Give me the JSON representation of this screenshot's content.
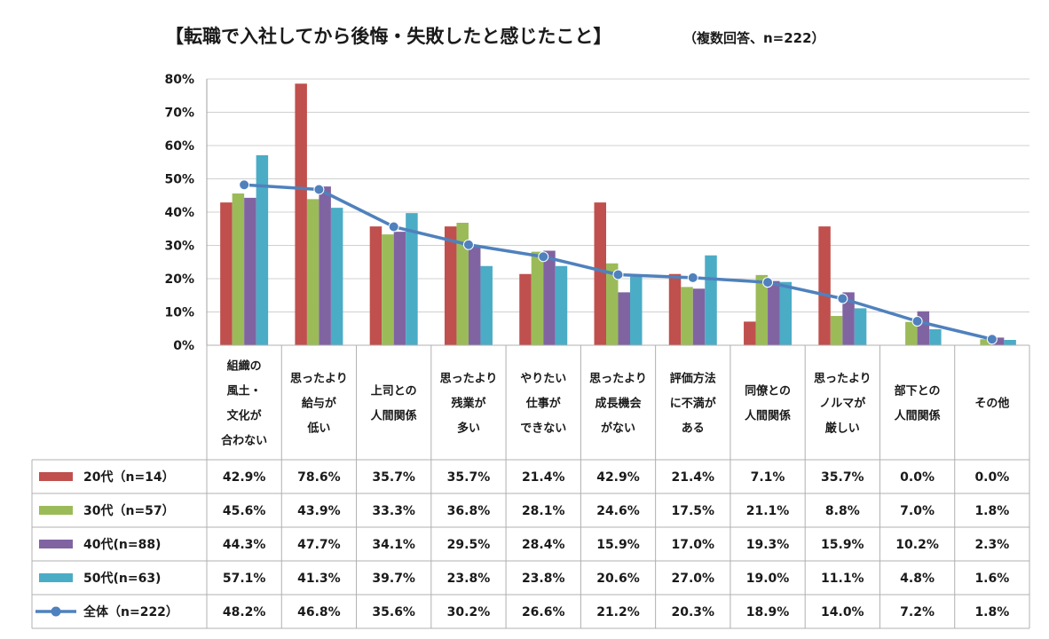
{
  "chart_data": {
    "type": "bar",
    "title": "【転職で入社してから後悔・失敗したと感じたこと】",
    "subtitle": "（複数回答、n=222）",
    "ylim": [
      0,
      80
    ],
    "yticks": [
      "0%",
      "10%",
      "20%",
      "30%",
      "40%",
      "50%",
      "60%",
      "70%",
      "80%"
    ],
    "grid": true,
    "legend": "table-left",
    "categories": [
      [
        "組織の",
        "風土・",
        "文化が",
        "合わない"
      ],
      [
        "思ったより",
        "給与が",
        "低い"
      ],
      [
        "上司との",
        "人間関係"
      ],
      [
        "思ったより",
        "残業が",
        "多い"
      ],
      [
        "やりたい",
        "仕事が",
        "できない"
      ],
      [
        "思ったより",
        "成長機会",
        "がない"
      ],
      [
        "評価方法",
        "に不満が",
        "ある"
      ],
      [
        "同僚との",
        "人間関係"
      ],
      [
        "思ったより",
        "ノルマが",
        "厳しい"
      ],
      [
        "部下との",
        "人間関係"
      ],
      [
        "その他"
      ]
    ],
    "series": [
      {
        "name": "20代（n=14）",
        "kind": "bar",
        "color": "#c0504d",
        "values": [
          42.9,
          78.6,
          35.7,
          35.7,
          21.4,
          42.9,
          21.4,
          7.1,
          35.7,
          0.0,
          0.0
        ],
        "labels": [
          "42.9%",
          "78.6%",
          "35.7%",
          "35.7%",
          "21.4%",
          "42.9%",
          "21.4%",
          "7.1%",
          "35.7%",
          "0.0%",
          "0.0%"
        ]
      },
      {
        "name": "30代（n=57）",
        "kind": "bar",
        "color": "#9bbb59",
        "values": [
          45.6,
          43.9,
          33.3,
          36.8,
          28.1,
          24.6,
          17.5,
          21.1,
          8.8,
          7.0,
          1.8
        ],
        "labels": [
          "45.6%",
          "43.9%",
          "33.3%",
          "36.8%",
          "28.1%",
          "24.6%",
          "17.5%",
          "21.1%",
          "8.8%",
          "7.0%",
          "1.8%"
        ]
      },
      {
        "name": "40代(n=88)",
        "kind": "bar",
        "color": "#8064a2",
        "values": [
          44.3,
          47.7,
          34.1,
          29.5,
          28.4,
          15.9,
          17.0,
          19.3,
          15.9,
          10.2,
          2.3
        ],
        "labels": [
          "44.3%",
          "47.7%",
          "34.1%",
          "29.5%",
          "28.4%",
          "15.9%",
          "17.0%",
          "19.3%",
          "15.9%",
          "10.2%",
          "2.3%"
        ]
      },
      {
        "name": "50代(n=63)",
        "kind": "bar",
        "color": "#4bacc6",
        "values": [
          57.1,
          41.3,
          39.7,
          23.8,
          23.8,
          20.6,
          27.0,
          19.0,
          11.1,
          4.8,
          1.6
        ],
        "labels": [
          "57.1%",
          "41.3%",
          "39.7%",
          "23.8%",
          "23.8%",
          "20.6%",
          "27.0%",
          "19.0%",
          "11.1%",
          "4.8%",
          "1.6%"
        ]
      },
      {
        "name": "全体（n=222）",
        "kind": "line",
        "color": "#4f81bd",
        "values": [
          48.2,
          46.8,
          35.6,
          30.2,
          26.6,
          21.2,
          20.3,
          18.9,
          14.0,
          7.2,
          1.8
        ],
        "labels": [
          "48.2%",
          "46.8%",
          "35.6%",
          "30.2%",
          "26.6%",
          "21.2%",
          "20.3%",
          "18.9%",
          "14.0%",
          "7.2%",
          "1.8%"
        ]
      }
    ]
  }
}
